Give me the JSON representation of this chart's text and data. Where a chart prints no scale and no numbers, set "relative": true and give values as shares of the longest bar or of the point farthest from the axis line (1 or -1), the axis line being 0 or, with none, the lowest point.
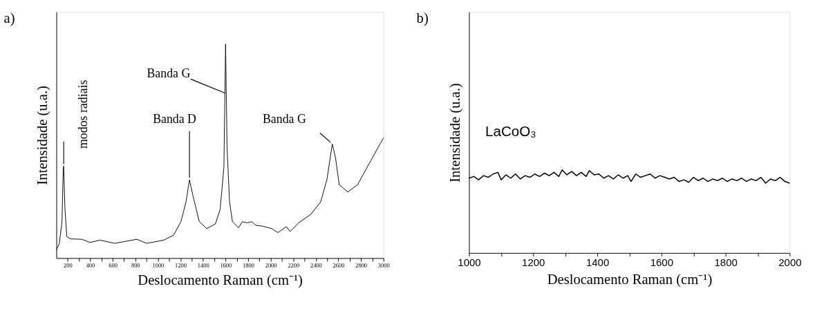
{
  "chart_data": [
    {
      "type": "line",
      "title": "a)",
      "xlabel": "Deslocamento Raman (cm⁻¹)",
      "ylabel": "Intensidade (u.a.)",
      "relative": true,
      "grid": false,
      "marker": "none",
      "line_style": "solid",
      "xlim": [
        100,
        3000
      ],
      "xticks": [
        200,
        400,
        600,
        800,
        1000,
        1200,
        1400,
        1600,
        1800,
        2000,
        2200,
        2400,
        2600,
        2800,
        3000,
        {
          "value": 300,
          "label": null
        },
        {
          "value": 500,
          "label": null
        },
        {
          "value": 700,
          "label": null
        },
        {
          "value": 900,
          "label": null
        },
        {
          "value": 1100,
          "label": null
        },
        {
          "value": 1300,
          "label": null
        },
        {
          "value": 1500,
          "label": null
        },
        {
          "value": 1700,
          "label": null
        },
        {
          "value": 1900,
          "label": null
        },
        {
          "value": 2100,
          "label": null
        },
        {
          "value": 2300,
          "label": null
        },
        {
          "value": 2500,
          "label": null
        },
        {
          "value": 2700,
          "label": null
        },
        {
          "value": 2900,
          "label": null
        }
      ],
      "x": [
        100,
        126,
        150,
        161,
        165,
        176,
        193,
        226,
        324,
        400,
        487,
        617,
        813,
        900,
        1052,
        1139,
        1204,
        1248,
        1280,
        1313,
        1367,
        1433,
        1509,
        1552,
        1585,
        1600,
        1613,
        1635,
        1661,
        1715,
        1748,
        1791,
        1835,
        1867,
        1922,
        2009,
        2063,
        2139,
        2172,
        2248,
        2357,
        2443,
        2498,
        2546,
        2574,
        2607,
        2683,
        2770,
        2878,
        3000
      ],
      "series": [
        {
          "color": "#000000",
          "values": [
            0.038,
            0.067,
            0.17,
            0.42,
            0.43,
            0.23,
            0.1,
            0.09,
            0.088,
            0.073,
            0.084,
            0.069,
            0.088,
            0.069,
            0.084,
            0.107,
            0.17,
            0.26,
            0.366,
            0.286,
            0.17,
            0.138,
            0.159,
            0.228,
            0.424,
            1.0,
            0.516,
            0.263,
            0.17,
            0.142,
            0.17,
            0.165,
            0.17,
            0.153,
            0.15,
            0.138,
            0.119,
            0.147,
            0.124,
            0.165,
            0.205,
            0.263,
            0.366,
            0.533,
            0.47,
            0.343,
            0.309,
            0.343,
            0.447,
            0.562
          ]
        }
      ],
      "annotations": [
        {
          "text": "modos radiais",
          "x": 165,
          "y": 0.43
        },
        {
          "text": "Banda D",
          "x": 1280,
          "y": 0.366
        },
        {
          "text": "Banda G",
          "x": 1600,
          "y": 0.77
        },
        {
          "text": "Banda G",
          "x": 2546,
          "y": 0.533
        }
      ]
    },
    {
      "type": "line",
      "title": "b)",
      "xlabel": "Deslocamento Raman (cm⁻¹)",
      "ylabel": "Intensidade (u.a.)",
      "relative": true,
      "grid": false,
      "marker": "none",
      "line_style": "solid",
      "xlim": [
        1000,
        2000
      ],
      "xticks": [
        1000,
        1200,
        1400,
        1600,
        1800,
        2000,
        {
          "value": 1100,
          "label": null
        },
        {
          "value": 1300,
          "label": null
        },
        {
          "value": 1500,
          "label": null
        },
        {
          "value": 1700,
          "label": null
        },
        {
          "value": 1900,
          "label": null
        }
      ],
      "x": [
        1000,
        1015,
        1030,
        1045,
        1060,
        1075,
        1090,
        1100,
        1115,
        1130,
        1145,
        1160,
        1175,
        1190,
        1205,
        1220,
        1235,
        1250,
        1265,
        1280,
        1290,
        1305,
        1320,
        1335,
        1350,
        1365,
        1375,
        1390,
        1405,
        1420,
        1435,
        1450,
        1465,
        1480,
        1495,
        1505,
        1520,
        1535,
        1550,
        1565,
        1580,
        1595,
        1610,
        1625,
        1640,
        1655,
        1670,
        1685,
        1700,
        1715,
        1730,
        1745,
        1760,
        1775,
        1790,
        1805,
        1820,
        1835,
        1850,
        1865,
        1880,
        1895,
        1910,
        1925,
        1940,
        1955,
        1970,
        1985,
        2000
      ],
      "series": [
        {
          "color": "#000000",
          "values": [
            0.9,
            0.92,
            0.88,
            0.93,
            0.91,
            0.95,
            0.97,
            0.88,
            0.94,
            0.9,
            0.95,
            0.89,
            0.93,
            0.91,
            0.95,
            0.92,
            0.96,
            0.93,
            0.97,
            0.92,
            1.0,
            0.94,
            0.98,
            0.93,
            0.97,
            0.92,
            0.99,
            0.94,
            0.95,
            0.9,
            0.93,
            0.89,
            0.94,
            0.9,
            0.93,
            0.86,
            0.95,
            0.91,
            0.93,
            0.95,
            0.9,
            0.93,
            0.91,
            0.89,
            0.91,
            0.86,
            0.88,
            0.85,
            0.91,
            0.87,
            0.9,
            0.86,
            0.89,
            0.87,
            0.9,
            0.86,
            0.89,
            0.87,
            0.9,
            0.86,
            0.89,
            0.87,
            0.91,
            0.84,
            0.89,
            0.87,
            0.91,
            0.86,
            0.84
          ]
        }
      ],
      "annotations": [
        "LaCoO₃"
      ]
    }
  ]
}
